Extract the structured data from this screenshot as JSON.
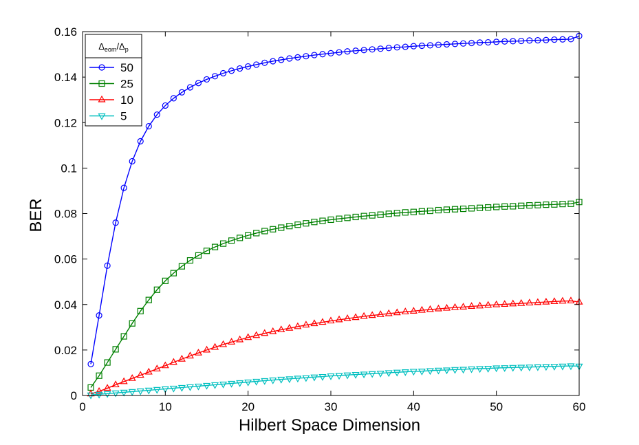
{
  "chart_data": {
    "type": "line",
    "xlabel": "Hilbert Space Dimension",
    "ylabel": "BER",
    "xlim": [
      0,
      60
    ],
    "ylim": [
      0,
      0.16
    ],
    "xticks": [
      0,
      10,
      20,
      30,
      40,
      50,
      60
    ],
    "xtick_labels": [
      "0",
      "10",
      "20",
      "30",
      "40",
      "50",
      "60"
    ],
    "yticks": [
      0,
      0.02,
      0.04,
      0.06,
      0.08,
      0.1,
      0.12,
      0.14,
      0.16
    ],
    "ytick_labels": [
      "0",
      "0.02",
      "0.04",
      "0.06",
      "0.08",
      "0.1",
      "0.12",
      "0.14",
      "0.16"
    ],
    "grid": false,
    "legend": {
      "position": "top-left",
      "title_main": "Δ",
      "title_sub1": "eom",
      "title_sep": "/Δ",
      "title_sub2": "p"
    },
    "x": [
      1,
      2,
      3,
      4,
      5,
      6,
      7,
      8,
      9,
      10,
      11,
      12,
      13,
      14,
      15,
      16,
      17,
      18,
      19,
      20,
      21,
      22,
      23,
      24,
      25,
      26,
      27,
      28,
      29,
      30,
      31,
      32,
      33,
      34,
      35,
      36,
      37,
      38,
      39,
      40,
      41,
      42,
      43,
      44,
      45,
      46,
      47,
      48,
      49,
      50,
      51,
      52,
      53,
      54,
      55,
      56,
      57,
      58,
      59,
      60
    ],
    "series": [
      {
        "name": "50",
        "color": "#0000ff",
        "marker": "circle",
        "values": [
          0.0138,
          0.0352,
          0.0571,
          0.076,
          0.0913,
          0.103,
          0.1118,
          0.1184,
          0.1235,
          0.1275,
          0.1307,
          0.1333,
          0.1355,
          0.1374,
          0.139,
          0.1404,
          0.1417,
          0.1428,
          0.1438,
          0.1447,
          0.1455,
          0.1463,
          0.147,
          0.1476,
          0.1482,
          0.1487,
          0.1492,
          0.1497,
          0.1501,
          0.1505,
          0.1509,
          0.1513,
          0.1516,
          0.1519,
          0.1522,
          0.1525,
          0.1528,
          0.1531,
          0.1533,
          0.1536,
          0.1538,
          0.154,
          0.1542,
          0.1544,
          0.1546,
          0.1548,
          0.155,
          0.1552,
          0.1553,
          0.1555,
          0.1557,
          0.1558,
          0.1559,
          0.1561,
          0.1562,
          0.1563,
          0.1565,
          0.1566,
          0.1567,
          0.1581
        ]
      },
      {
        "name": "25",
        "color": "#008000",
        "marker": "square",
        "values": [
          0.0035,
          0.0087,
          0.0145,
          0.0203,
          0.026,
          0.0317,
          0.0371,
          0.042,
          0.0465,
          0.0504,
          0.0538,
          0.0568,
          0.0594,
          0.0616,
          0.0636,
          0.0653,
          0.0668,
          0.0681,
          0.0693,
          0.0704,
          0.0714,
          0.0723,
          0.0731,
          0.0738,
          0.0745,
          0.0751,
          0.0757,
          0.0763,
          0.0768,
          0.0773,
          0.0777,
          0.0781,
          0.0785,
          0.0789,
          0.0792,
          0.0795,
          0.0799,
          0.0802,
          0.0805,
          0.0807,
          0.081,
          0.0812,
          0.0815,
          0.0817,
          0.0819,
          0.0821,
          0.0823,
          0.0825,
          0.0827,
          0.0829,
          0.0831,
          0.0832,
          0.0834,
          0.0836,
          0.0837,
          0.0839,
          0.084,
          0.0842,
          0.0843,
          0.0851
        ]
      },
      {
        "name": "10",
        "color": "#ff0000",
        "marker": "triangle-up",
        "values": [
          0.0007,
          0.0018,
          0.0032,
          0.0047,
          0.0061,
          0.0075,
          0.0089,
          0.0103,
          0.0117,
          0.0131,
          0.0146,
          0.016,
          0.0174,
          0.0187,
          0.02,
          0.0212,
          0.0224,
          0.0235,
          0.0245,
          0.0255,
          0.0264,
          0.0273,
          0.0281,
          0.0289,
          0.0296,
          0.0303,
          0.031,
          0.0316,
          0.0322,
          0.0328,
          0.0333,
          0.0338,
          0.0343,
          0.0348,
          0.0352,
          0.0356,
          0.036,
          0.0364,
          0.0368,
          0.0371,
          0.0375,
          0.0378,
          0.0381,
          0.0384,
          0.0387,
          0.0389,
          0.0392,
          0.0394,
          0.0397,
          0.0399,
          0.0401,
          0.0403,
          0.0405,
          0.0407,
          0.0409,
          0.0411,
          0.0413,
          0.0415,
          0.0416,
          0.0411
        ]
      },
      {
        "name": "5",
        "color": "#00bfbf",
        "marker": "triangle-down",
        "values": [
          0.0002,
          0.0005,
          0.0008,
          0.0011,
          0.0014,
          0.0017,
          0.002,
          0.0023,
          0.0026,
          0.0029,
          0.0032,
          0.0035,
          0.0038,
          0.0041,
          0.0044,
          0.0047,
          0.005,
          0.0053,
          0.0056,
          0.0059,
          0.0062,
          0.0065,
          0.0068,
          0.0071,
          0.0073,
          0.0076,
          0.0078,
          0.0081,
          0.0083,
          0.0086,
          0.0088,
          0.009,
          0.0092,
          0.0094,
          0.0096,
          0.0098,
          0.01,
          0.0102,
          0.0104,
          0.0106,
          0.0107,
          0.0109,
          0.0111,
          0.0112,
          0.0114,
          0.0115,
          0.0117,
          0.0118,
          0.0119,
          0.0121,
          0.0122,
          0.0123,
          0.0124,
          0.0125,
          0.0126,
          0.0127,
          0.0128,
          0.0129,
          0.013,
          0.0129
        ]
      }
    ]
  }
}
